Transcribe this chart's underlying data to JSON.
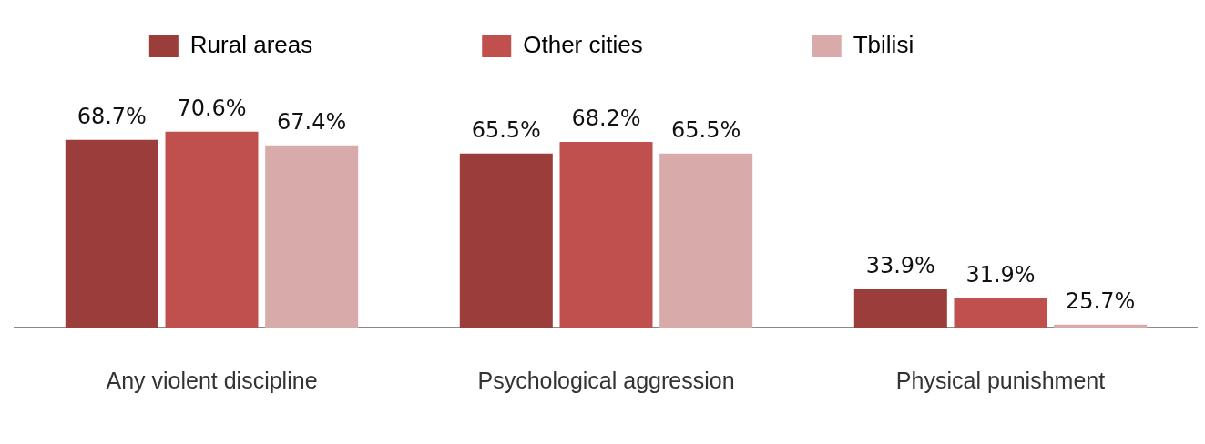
{
  "chart_data": {
    "type": "bar",
    "categories": [
      "Any violent discipline",
      "Psychological aggression",
      "Physical punishment"
    ],
    "series": [
      {
        "name": "Rural areas",
        "color": "#9b3d3a",
        "values": [
          68.7,
          65.5,
          33.9
        ],
        "value_labels": [
          "68.7%",
          "65.5%",
          "33.9%"
        ]
      },
      {
        "name": "Other cities",
        "color": "#c0504d",
        "values": [
          70.6,
          68.2,
          31.9
        ],
        "value_labels": [
          "70.6%",
          "68.2%",
          "31.9%"
        ]
      },
      {
        "name": "Tbilisi",
        "color": "#d9aaaa",
        "values": [
          67.4,
          65.5,
          25.7
        ],
        "value_labels": [
          "67.4%",
          "65.5%",
          "25.7%"
        ]
      }
    ],
    "tick_labels": "x",
    "grid": false,
    "legend": "top"
  }
}
